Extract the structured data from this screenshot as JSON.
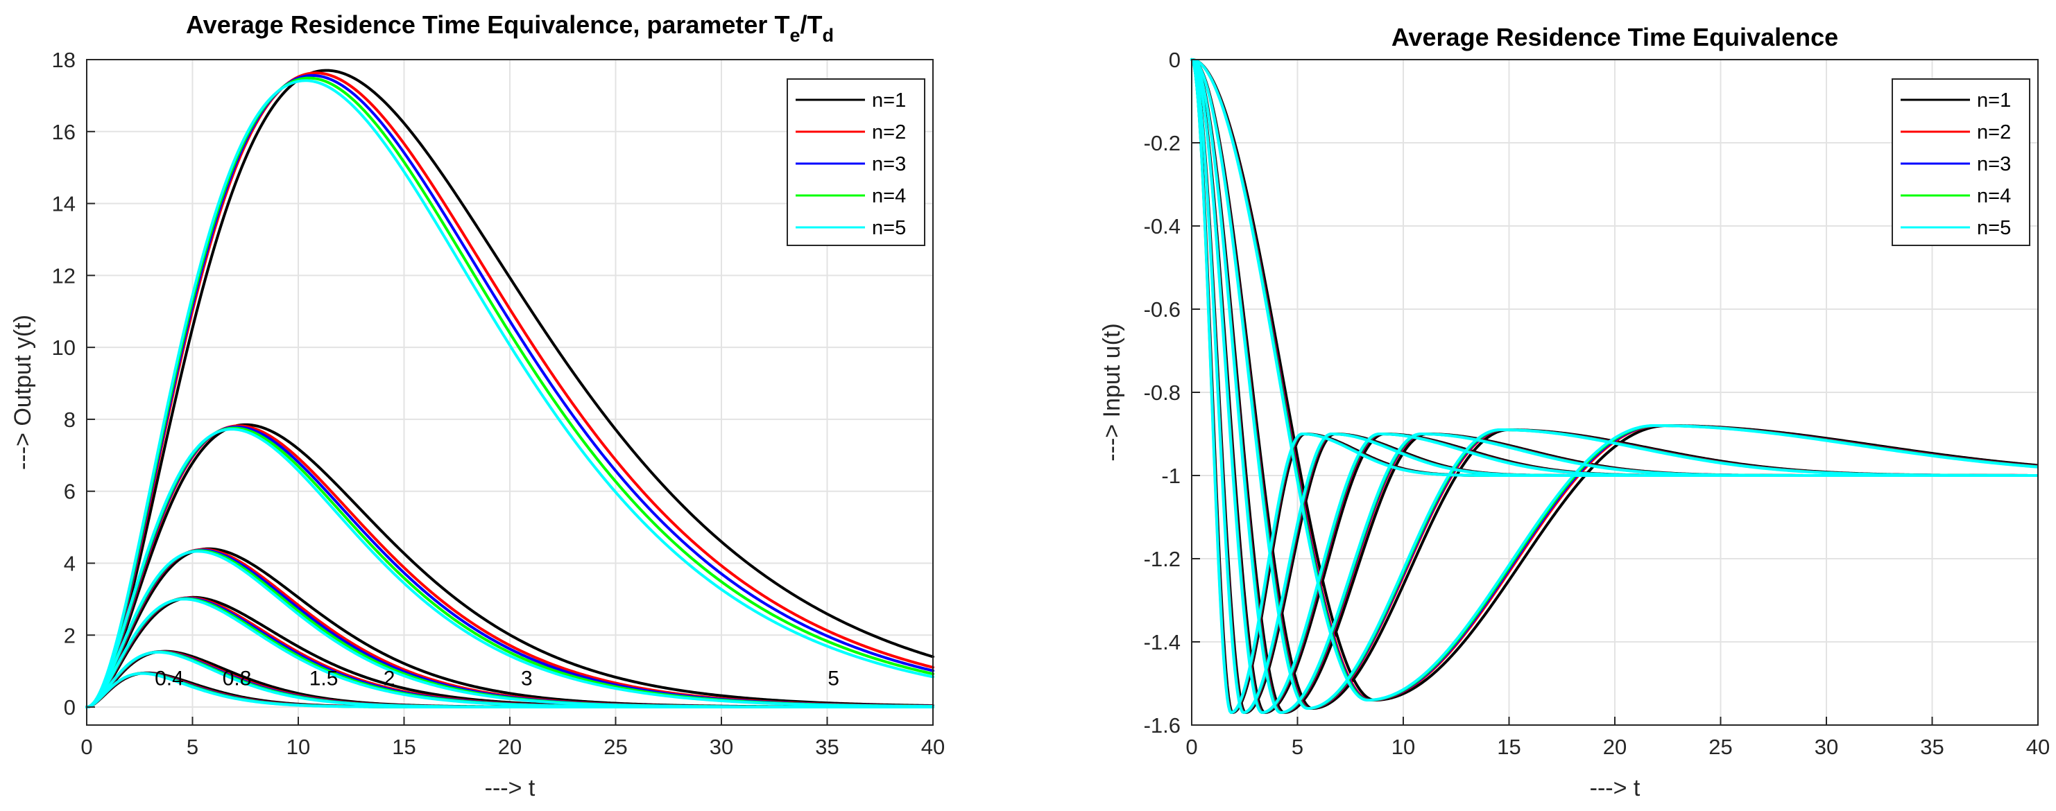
{
  "chart_data": [
    {
      "type": "line",
      "title_main": "Average Residence Time Equivalence, parameter T",
      "title_sub_e": "e",
      "title_slash": "/T",
      "title_sub_d": "d",
      "xlabel": "---> t",
      "ylabel": "---> Output y(t)",
      "xlim": [
        0,
        40
      ],
      "ylim": [
        -0.5,
        18
      ],
      "xticks": [
        0,
        5,
        10,
        15,
        20,
        25,
        30,
        35,
        40
      ],
      "yticks": [
        0,
        2,
        4,
        6,
        8,
        10,
        12,
        14,
        16,
        18
      ],
      "grid": true,
      "legend_position": "top-right",
      "legend": [
        "n=1",
        "n=2",
        "n=3",
        "n=4",
        "n=5"
      ],
      "series_colors": [
        "#000000",
        "#ff0000",
        "#0000ff",
        "#00ff00",
        "#00ffff"
      ],
      "parameter_values": [
        0.4,
        0.8,
        1.5,
        2,
        3,
        5
      ],
      "peak_values": [
        0.95,
        1.55,
        3.05,
        4.4,
        7.85,
        17.7
      ],
      "peak_times": [
        2.8,
        3.6,
        4.9,
        5.6,
        7.3,
        11.0
      ],
      "annotations": [
        {
          "text": "0.4",
          "x": 3.9,
          "y": 0.8
        },
        {
          "text": "0.8",
          "x": 7.1,
          "y": 0.8
        },
        {
          "text": "1.5",
          "x": 11.2,
          "y": 0.8
        },
        {
          "text": "2",
          "x": 14.3,
          "y": 0.8
        },
        {
          "text": "3",
          "x": 20.8,
          "y": 0.8
        },
        {
          "text": "5",
          "x": 35.3,
          "y": 0.8
        }
      ]
    },
    {
      "type": "line",
      "title": "Average Residence Time Equivalence",
      "xlabel": "---> t",
      "ylabel": "---> Input u(t)",
      "xlim": [
        0,
        40
      ],
      "ylim": [
        -1.6,
        0
      ],
      "xticks": [
        0,
        5,
        10,
        15,
        20,
        25,
        30,
        35,
        40
      ],
      "yticks": [
        0,
        -0.2,
        -0.4,
        -0.6,
        -0.8,
        -1,
        -1.2,
        -1.4,
        -1.6
      ],
      "grid": true,
      "legend_position": "top-right",
      "legend": [
        "n=1",
        "n=2",
        "n=3",
        "n=4",
        "n=5"
      ],
      "series_colors": [
        "#000000",
        "#ff0000",
        "#0000ff",
        "#00ff00",
        "#00ffff"
      ],
      "final_value": -1,
      "minimum_values": [
        -1.57,
        -1.57,
        -1.57,
        -1.57,
        -1.56,
        -1.54
      ],
      "minimum_times": [
        1.9,
        2.5,
        3.4,
        4.3,
        5.6,
        8.5
      ],
      "overshoot_values": [
        -0.9,
        -0.9,
        -0.9,
        -0.9,
        -0.89,
        -0.88
      ],
      "overshoot_times": [
        5.3,
        6.7,
        9.0,
        11.0,
        14.8,
        22.2
      ]
    }
  ]
}
